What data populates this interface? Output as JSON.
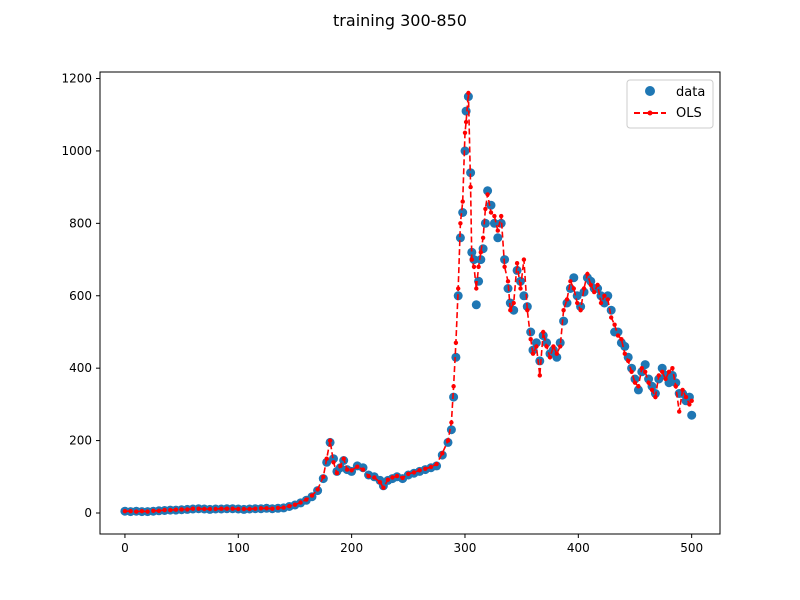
{
  "chart_data": {
    "type": "scatter",
    "title": "training 300-850",
    "xlabel": "",
    "ylabel": "",
    "xlim": [
      -22,
      525
    ],
    "ylim": [
      -58,
      1218
    ],
    "xticks": [
      0,
      100,
      200,
      300,
      400,
      500
    ],
    "yticks": [
      0,
      200,
      400,
      600,
      800,
      1000,
      1200
    ],
    "grid": false,
    "legend_placement": "top-right",
    "series": [
      {
        "name": "data",
        "style": "markers",
        "color": "#1f77b4",
        "points": [
          [
            0,
            5
          ],
          [
            5,
            4
          ],
          [
            10,
            5
          ],
          [
            15,
            4
          ],
          [
            20,
            4
          ],
          [
            25,
            5
          ],
          [
            30,
            6
          ],
          [
            35,
            7
          ],
          [
            40,
            8
          ],
          [
            45,
            8
          ],
          [
            50,
            9
          ],
          [
            55,
            10
          ],
          [
            60,
            11
          ],
          [
            65,
            12
          ],
          [
            70,
            11
          ],
          [
            75,
            10
          ],
          [
            80,
            11
          ],
          [
            85,
            11
          ],
          [
            90,
            12
          ],
          [
            95,
            12
          ],
          [
            100,
            11
          ],
          [
            105,
            10
          ],
          [
            110,
            11
          ],
          [
            115,
            12
          ],
          [
            120,
            12
          ],
          [
            125,
            13
          ],
          [
            130,
            12
          ],
          [
            135,
            13
          ],
          [
            140,
            14
          ],
          [
            145,
            18
          ],
          [
            150,
            22
          ],
          [
            155,
            28
          ],
          [
            160,
            35
          ],
          [
            165,
            45
          ],
          [
            170,
            62
          ],
          [
            175,
            95
          ],
          [
            178,
            140
          ],
          [
            181,
            195
          ],
          [
            184,
            150
          ],
          [
            187,
            115
          ],
          [
            190,
            125
          ],
          [
            193,
            145
          ],
          [
            196,
            120
          ],
          [
            200,
            115
          ],
          [
            205,
            130
          ],
          [
            210,
            125
          ],
          [
            215,
            105
          ],
          [
            220,
            100
          ],
          [
            225,
            90
          ],
          [
            228,
            75
          ],
          [
            232,
            90
          ],
          [
            236,
            95
          ],
          [
            240,
            100
          ],
          [
            245,
            95
          ],
          [
            250,
            105
          ],
          [
            255,
            110
          ],
          [
            260,
            115
          ],
          [
            265,
            120
          ],
          [
            270,
            125
          ],
          [
            275,
            130
          ],
          [
            280,
            160
          ],
          [
            285,
            195
          ],
          [
            288,
            230
          ],
          [
            290,
            320
          ],
          [
            292,
            430
          ],
          [
            294,
            600
          ],
          [
            296,
            760
          ],
          [
            298,
            830
          ],
          [
            300,
            1000
          ],
          [
            301,
            1110
          ],
          [
            303,
            1150
          ],
          [
            305,
            940
          ],
          [
            306,
            720
          ],
          [
            308,
            700
          ],
          [
            310,
            575
          ],
          [
            312,
            640
          ],
          [
            314,
            700
          ],
          [
            316,
            730
          ],
          [
            318,
            800
          ],
          [
            320,
            890
          ],
          [
            323,
            850
          ],
          [
            326,
            800
          ],
          [
            329,
            760
          ],
          [
            332,
            800
          ],
          [
            335,
            700
          ],
          [
            338,
            620
          ],
          [
            340,
            580
          ],
          [
            343,
            560
          ],
          [
            346,
            670
          ],
          [
            349,
            640
          ],
          [
            352,
            600
          ],
          [
            355,
            570
          ],
          [
            358,
            500
          ],
          [
            360,
            450
          ],
          [
            363,
            470
          ],
          [
            366,
            420
          ],
          [
            369,
            490
          ],
          [
            372,
            470
          ],
          [
            375,
            440
          ],
          [
            378,
            450
          ],
          [
            381,
            430
          ],
          [
            384,
            470
          ],
          [
            387,
            530
          ],
          [
            390,
            580
          ],
          [
            393,
            620
          ],
          [
            396,
            650
          ],
          [
            399,
            600
          ],
          [
            402,
            570
          ],
          [
            405,
            610
          ],
          [
            408,
            650
          ],
          [
            411,
            640
          ],
          [
            414,
            620
          ],
          [
            417,
            620
          ],
          [
            420,
            600
          ],
          [
            423,
            580
          ],
          [
            426,
            600
          ],
          [
            429,
            560
          ],
          [
            432,
            500
          ],
          [
            435,
            500
          ],
          [
            438,
            470
          ],
          [
            441,
            460
          ],
          [
            444,
            430
          ],
          [
            447,
            400
          ],
          [
            450,
            370
          ],
          [
            453,
            340
          ],
          [
            456,
            390
          ],
          [
            459,
            410
          ],
          [
            462,
            370
          ],
          [
            465,
            350
          ],
          [
            468,
            330
          ],
          [
            471,
            370
          ],
          [
            474,
            400
          ],
          [
            477,
            380
          ],
          [
            480,
            360
          ],
          [
            483,
            380
          ],
          [
            486,
            360
          ],
          [
            489,
            330
          ],
          [
            492,
            330
          ],
          [
            495,
            310
          ],
          [
            498,
            320
          ],
          [
            500,
            270
          ]
        ]
      },
      {
        "name": "OLS",
        "style": "dashed-line-with-dots",
        "color": "#ff0000",
        "points": [
          [
            0,
            5
          ],
          [
            5,
            5
          ],
          [
            10,
            4
          ],
          [
            15,
            5
          ],
          [
            20,
            4
          ],
          [
            25,
            6
          ],
          [
            30,
            6
          ],
          [
            35,
            8
          ],
          [
            40,
            8
          ],
          [
            45,
            9
          ],
          [
            50,
            10
          ],
          [
            55,
            10
          ],
          [
            60,
            12
          ],
          [
            65,
            12
          ],
          [
            70,
            11
          ],
          [
            75,
            11
          ],
          [
            80,
            11
          ],
          [
            85,
            12
          ],
          [
            90,
            12
          ],
          [
            95,
            12
          ],
          [
            100,
            11
          ],
          [
            105,
            11
          ],
          [
            110,
            11
          ],
          [
            115,
            12
          ],
          [
            120,
            13
          ],
          [
            125,
            13
          ],
          [
            130,
            12
          ],
          [
            135,
            14
          ],
          [
            140,
            15
          ],
          [
            145,
            19
          ],
          [
            150,
            23
          ],
          [
            155,
            29
          ],
          [
            160,
            37
          ],
          [
            165,
            48
          ],
          [
            170,
            65
          ],
          [
            175,
            100
          ],
          [
            178,
            150
          ],
          [
            181,
            200
          ],
          [
            184,
            140
          ],
          [
            187,
            110
          ],
          [
            190,
            130
          ],
          [
            193,
            150
          ],
          [
            196,
            120
          ],
          [
            200,
            118
          ],
          [
            205,
            128
          ],
          [
            210,
            120
          ],
          [
            215,
            102
          ],
          [
            220,
            98
          ],
          [
            225,
            85
          ],
          [
            228,
            70
          ],
          [
            232,
            92
          ],
          [
            236,
            98
          ],
          [
            240,
            102
          ],
          [
            245,
            97
          ],
          [
            250,
            108
          ],
          [
            255,
            112
          ],
          [
            260,
            118
          ],
          [
            265,
            122
          ],
          [
            270,
            127
          ],
          [
            275,
            135
          ],
          [
            280,
            165
          ],
          [
            285,
            200
          ],
          [
            288,
            250
          ],
          [
            290,
            350
          ],
          [
            292,
            470
          ],
          [
            294,
            620
          ],
          [
            296,
            800
          ],
          [
            298,
            860
          ],
          [
            300,
            1050
          ],
          [
            301,
            1080
          ],
          [
            303,
            1160
          ],
          [
            305,
            900
          ],
          [
            306,
            700
          ],
          [
            308,
            680
          ],
          [
            310,
            620
          ],
          [
            312,
            680
          ],
          [
            314,
            720
          ],
          [
            316,
            760
          ],
          [
            318,
            840
          ],
          [
            320,
            880
          ],
          [
            323,
            830
          ],
          [
            326,
            820
          ],
          [
            329,
            780
          ],
          [
            332,
            820
          ],
          [
            335,
            680
          ],
          [
            338,
            640
          ],
          [
            340,
            560
          ],
          [
            343,
            580
          ],
          [
            346,
            690
          ],
          [
            349,
            620
          ],
          [
            352,
            700
          ],
          [
            355,
            560
          ],
          [
            358,
            480
          ],
          [
            360,
            440
          ],
          [
            363,
            460
          ],
          [
            366,
            380
          ],
          [
            369,
            500
          ],
          [
            372,
            460
          ],
          [
            375,
            430
          ],
          [
            378,
            460
          ],
          [
            381,
            440
          ],
          [
            384,
            460
          ],
          [
            387,
            560
          ],
          [
            390,
            590
          ],
          [
            393,
            640
          ],
          [
            396,
            620
          ],
          [
            399,
            580
          ],
          [
            402,
            560
          ],
          [
            405,
            620
          ],
          [
            408,
            660
          ],
          [
            411,
            630
          ],
          [
            414,
            610
          ],
          [
            417,
            630
          ],
          [
            420,
            580
          ],
          [
            423,
            600
          ],
          [
            426,
            590
          ],
          [
            429,
            540
          ],
          [
            432,
            520
          ],
          [
            435,
            490
          ],
          [
            438,
            480
          ],
          [
            441,
            440
          ],
          [
            444,
            420
          ],
          [
            447,
            390
          ],
          [
            450,
            360
          ],
          [
            453,
            350
          ],
          [
            456,
            400
          ],
          [
            459,
            390
          ],
          [
            462,
            360
          ],
          [
            465,
            340
          ],
          [
            468,
            320
          ],
          [
            471,
            380
          ],
          [
            474,
            390
          ],
          [
            477,
            370
          ],
          [
            480,
            390
          ],
          [
            483,
            400
          ],
          [
            486,
            350
          ],
          [
            489,
            280
          ],
          [
            492,
            340
          ],
          [
            495,
            320
          ],
          [
            498,
            300
          ],
          [
            500,
            310
          ]
        ]
      }
    ]
  },
  "colors": {
    "data": "#1f77b4",
    "ols": "#ff0000",
    "axes": "#000000",
    "background": "#ffffff"
  }
}
